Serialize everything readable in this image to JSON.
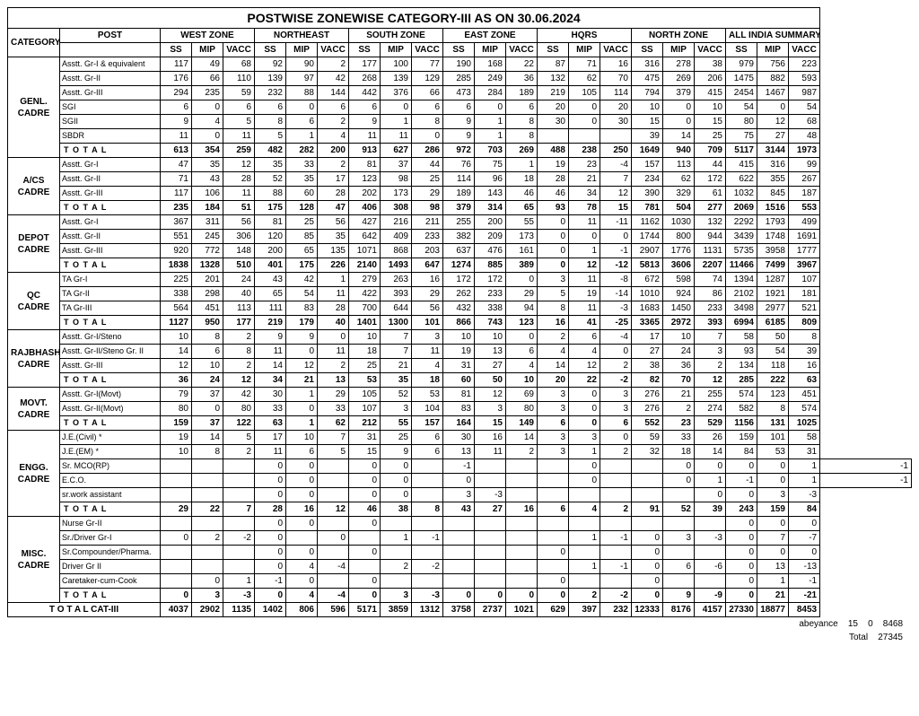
{
  "title": "POSTWISE ZONEWISE CATEGORY-III AS ON 30.06.2024",
  "corner": "CATEGORY-III",
  "post_hdr": "POST",
  "zones": [
    "WEST ZONE",
    "NORTHEAST",
    "SOUTH ZONE",
    "EAST ZONE",
    "HQRS",
    "NORTH ZONE",
    "ALL INDIA SUMMARY"
  ],
  "sub": [
    "SS",
    "MIP",
    "VACC"
  ],
  "groups": [
    {
      "name": "GENL. CADRE",
      "rows": [
        {
          "p": "Asstt. Gr-I & equivalent",
          "v": [
            117,
            49,
            68,
            92,
            90,
            2,
            177,
            100,
            77,
            190,
            168,
            22,
            87,
            71,
            16,
            316,
            278,
            38,
            979,
            756,
            223
          ]
        },
        {
          "p": "Asstt. Gr-II",
          "v": [
            176,
            66,
            110,
            139,
            97,
            42,
            268,
            139,
            129,
            285,
            249,
            36,
            132,
            62,
            70,
            475,
            269,
            206,
            1475,
            882,
            593
          ]
        },
        {
          "p": "Asstt. Gr-III",
          "v": [
            294,
            235,
            59,
            232,
            88,
            144,
            442,
            376,
            66,
            473,
            284,
            189,
            219,
            105,
            114,
            794,
            379,
            415,
            2454,
            1467,
            987
          ]
        },
        {
          "p": "SGI",
          "v": [
            6,
            0,
            6,
            6,
            0,
            6,
            6,
            0,
            6,
            6,
            0,
            6,
            20,
            0,
            20,
            10,
            0,
            10,
            54,
            0,
            54
          ]
        },
        {
          "p": "SGII",
          "v": [
            9,
            4,
            5,
            8,
            6,
            2,
            9,
            1,
            8,
            9,
            1,
            8,
            30,
            0,
            30,
            15,
            0,
            15,
            80,
            12,
            68
          ]
        },
        {
          "p": "SBDR",
          "v": [
            11,
            0,
            11,
            5,
            1,
            4,
            11,
            11,
            0,
            9,
            1,
            8,
            "",
            "",
            "",
            39,
            14,
            25,
            75,
            27,
            48
          ]
        }
      ],
      "total": [
        613,
        354,
        259,
        482,
        282,
        200,
        913,
        627,
        286,
        972,
        703,
        269,
        488,
        238,
        250,
        1649,
        940,
        709,
        5117,
        3144,
        1973
      ]
    },
    {
      "name": "A/CS CADRE",
      "rows": [
        {
          "p": "Asstt. Gr-I",
          "v": [
            47,
            35,
            12,
            35,
            33,
            2,
            81,
            37,
            44,
            76,
            75,
            1,
            19,
            23,
            -4,
            157,
            113,
            44,
            415,
            316,
            99
          ]
        },
        {
          "p": "Asstt. Gr-II",
          "v": [
            71,
            43,
            28,
            52,
            35,
            17,
            123,
            98,
            25,
            114,
            96,
            18,
            28,
            21,
            7,
            234,
            62,
            172,
            622,
            355,
            267
          ]
        },
        {
          "p": "Asstt. Gr-III",
          "v": [
            117,
            106,
            11,
            88,
            60,
            28,
            202,
            173,
            29,
            189,
            143,
            46,
            46,
            34,
            12,
            390,
            329,
            61,
            1032,
            845,
            187
          ]
        }
      ],
      "total": [
        235,
        184,
        51,
        175,
        128,
        47,
        406,
        308,
        98,
        379,
        314,
        65,
        93,
        78,
        15,
        781,
        504,
        277,
        2069,
        1516,
        553
      ]
    },
    {
      "name": "DEPOT CADRE",
      "rows": [
        {
          "p": "Asstt. Gr-I",
          "v": [
            367,
            311,
            56,
            81,
            25,
            56,
            427,
            216,
            211,
            255,
            200,
            55,
            0,
            11,
            -11,
            1162,
            1030,
            132,
            2292,
            1793,
            499
          ]
        },
        {
          "p": "Asstt. Gr-II",
          "v": [
            551,
            245,
            306,
            120,
            85,
            35,
            642,
            409,
            233,
            382,
            209,
            173,
            0,
            0,
            0,
            1744,
            800,
            944,
            3439,
            1748,
            1691
          ]
        },
        {
          "p": "Asstt. Gr-III",
          "v": [
            920,
            772,
            148,
            200,
            65,
            135,
            1071,
            868,
            203,
            637,
            476,
            161,
            0,
            1,
            -1,
            2907,
            1776,
            1131,
            5735,
            3958,
            1777
          ]
        }
      ],
      "total": [
        1838,
        1328,
        510,
        401,
        175,
        226,
        2140,
        1493,
        647,
        1274,
        885,
        389,
        0,
        12,
        -12,
        5813,
        3606,
        2207,
        11466,
        7499,
        3967
      ]
    },
    {
      "name": "QC CADRE",
      "rows": [
        {
          "p": "TA Gr-I",
          "v": [
            225,
            201,
            24,
            43,
            42,
            1,
            279,
            263,
            16,
            172,
            172,
            0,
            3,
            11,
            -8,
            672,
            598,
            74,
            1394,
            1287,
            107
          ]
        },
        {
          "p": "TA Gr-II",
          "v": [
            338,
            298,
            40,
            65,
            54,
            11,
            422,
            393,
            29,
            262,
            233,
            29,
            5,
            19,
            -14,
            1010,
            924,
            86,
            2102,
            1921,
            181
          ]
        },
        {
          "p": "TA Gr-III",
          "v": [
            564,
            451,
            113,
            111,
            83,
            28,
            700,
            644,
            56,
            432,
            338,
            94,
            8,
            11,
            -3,
            1683,
            1450,
            233,
            3498,
            2977,
            521
          ]
        }
      ],
      "total": [
        1127,
        950,
        177,
        219,
        179,
        40,
        1401,
        1300,
        101,
        866,
        743,
        123,
        16,
        41,
        -25,
        3365,
        2972,
        393,
        6994,
        6185,
        809
      ]
    },
    {
      "name": "RAJBHASHA CADRE",
      "rows": [
        {
          "p": "Asstt. Gr-I/Steno",
          "v": [
            10,
            8,
            2,
            9,
            9,
            0,
            10,
            7,
            3,
            10,
            10,
            0,
            2,
            6,
            -4,
            17,
            10,
            7,
            58,
            50,
            8
          ]
        },
        {
          "p": "Asstt. Gr-II/Steno Gr. II",
          "v": [
            14,
            6,
            8,
            11,
            0,
            11,
            18,
            7,
            11,
            19,
            13,
            6,
            4,
            4,
            0,
            27,
            24,
            3,
            93,
            54,
            39
          ]
        },
        {
          "p": "Asstt. Gr-III",
          "v": [
            12,
            10,
            2,
            14,
            12,
            2,
            25,
            21,
            4,
            31,
            27,
            4,
            14,
            12,
            2,
            38,
            36,
            2,
            134,
            118,
            16
          ]
        }
      ],
      "total": [
        36,
        24,
        12,
        34,
        21,
        13,
        53,
        35,
        18,
        60,
        50,
        10,
        20,
        22,
        -2,
        82,
        70,
        12,
        285,
        222,
        63
      ]
    },
    {
      "name": "MOVT. CADRE",
      "rows": [
        {
          "p": "Asstt. Gr-I(Movt)",
          "v": [
            79,
            37,
            42,
            30,
            1,
            29,
            105,
            52,
            53,
            81,
            12,
            69,
            3,
            0,
            3,
            276,
            21,
            255,
            574,
            123,
            451
          ]
        },
        {
          "p": "Asstt. Gr-II(Movt)",
          "v": [
            80,
            0,
            80,
            33,
            0,
            33,
            107,
            3,
            104,
            83,
            3,
            80,
            3,
            0,
            3,
            276,
            2,
            274,
            582,
            8,
            574
          ]
        }
      ],
      "total": [
        159,
        37,
        122,
        63,
        1,
        62,
        212,
        55,
        157,
        164,
        15,
        149,
        6,
        0,
        6,
        552,
        23,
        529,
        1156,
        131,
        1025
      ]
    },
    {
      "name": "ENGG. CADRE",
      "rows": [
        {
          "p": "J.E.(Civil) *",
          "v": [
            19,
            14,
            5,
            17,
            10,
            7,
            31,
            25,
            6,
            30,
            16,
            14,
            3,
            3,
            0,
            59,
            33,
            26,
            159,
            101,
            58
          ]
        },
        {
          "p": "J.E.(EM) *",
          "v": [
            10,
            8,
            2,
            11,
            6,
            5,
            15,
            9,
            6,
            13,
            11,
            2,
            3,
            1,
            2,
            32,
            18,
            14,
            84,
            53,
            31
          ]
        },
        {
          "p": "Sr. MCO(RP)",
          "v": [
            "",
            "",
            "",
            0,
            0,
            "",
            0,
            0,
            "",
            -1,
            "",
            "",
            "",
            0,
            "",
            "",
            0,
            0,
            0,
            0,
            1,
            -1
          ]
        },
        {
          "p": "E.C.O.",
          "v": [
            "",
            "",
            "",
            0,
            0,
            "",
            0,
            0,
            "",
            0,
            "",
            "",
            "",
            0,
            "",
            "",
            0,
            1,
            -1,
            0,
            1,
            -1
          ]
        },
        {
          "p": "sr.work assistant",
          "v": [
            "",
            "",
            "",
            0,
            0,
            "",
            0,
            0,
            "",
            3,
            -3,
            "",
            "",
            "",
            "",
            "",
            "",
            0,
            0,
            3,
            -3
          ]
        }
      ],
      "total": [
        29,
        22,
        7,
        28,
        16,
        12,
        46,
        38,
        8,
        43,
        27,
        16,
        6,
        4,
        2,
        91,
        52,
        39,
        243,
        159,
        84
      ]
    },
    {
      "name": "MISC. CADRE",
      "rows": [
        {
          "p": "Nurse Gr-II",
          "v": [
            "",
            "",
            "",
            0,
            0,
            "",
            0,
            "",
            "",
            "",
            "",
            "",
            "",
            "",
            "",
            "",
            "",
            "",
            0,
            0,
            0
          ]
        },
        {
          "p": "Sr./Driver Gr-I",
          "v": [
            0,
            2,
            -2,
            0,
            "",
            0,
            "",
            1,
            -1,
            "",
            "",
            "",
            "",
            1,
            -1,
            0,
            3,
            -3,
            0,
            7,
            -7
          ]
        },
        {
          "p": "Sr.Compounder/Pharma.",
          "v": [
            "",
            "",
            "",
            0,
            0,
            "",
            0,
            "",
            "",
            "",
            "",
            "",
            0,
            "",
            "",
            0,
            "",
            "",
            0,
            0,
            0
          ]
        },
        {
          "p": "Driver Gr II",
          "v": [
            "",
            "",
            "",
            0,
            4,
            -4,
            "",
            2,
            -2,
            "",
            "",
            "",
            "",
            1,
            -1,
            0,
            6,
            -6,
            0,
            13,
            -13
          ]
        },
        {
          "p": "Caretaker-cum-Cook",
          "v": [
            "",
            0,
            1,
            -1,
            0,
            "",
            0,
            "",
            "",
            "",
            "",
            "",
            0,
            "",
            "",
            0,
            "",
            "",
            0,
            1,
            -1
          ]
        }
      ],
      "total": [
        0,
        3,
        -3,
        0,
        4,
        -4,
        0,
        3,
        -3,
        0,
        0,
        0,
        0,
        2,
        -2,
        0,
        9,
        -9,
        0,
        21,
        -21
      ]
    }
  ],
  "grand": {
    "label": "T O T A L  CAT-III",
    "v": [
      4037,
      2902,
      1135,
      1402,
      806,
      596,
      5171,
      3859,
      1312,
      3758,
      2737,
      1021,
      629,
      397,
      232,
      12333,
      8176,
      4157,
      27330,
      18877,
      8453
    ]
  },
  "footer": [
    {
      "label": "abeyance",
      "a": 15,
      "b": 0,
      "c": 8468
    },
    {
      "label": "Total",
      "a": 27345
    }
  ]
}
